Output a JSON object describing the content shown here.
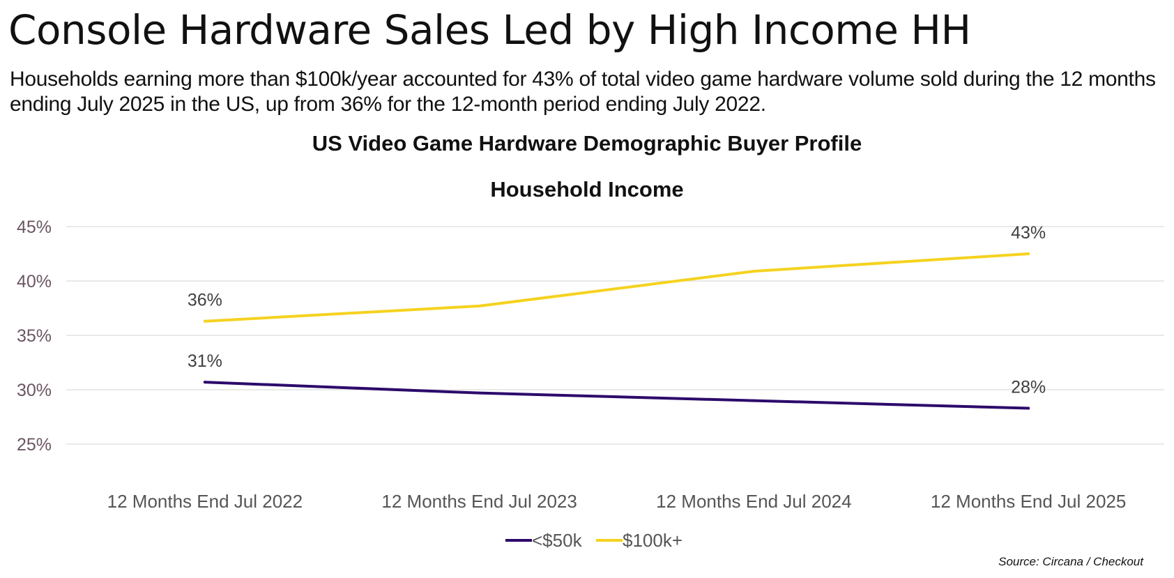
{
  "headline": "Console Hardware Sales Led by High Income HH",
  "subheadline": "Households earning more than $100k/year accounted for 43% of total video game hardware volume sold during the 12 months ending July 2025 in the US, up from 36% for the 12-month period ending July 2022.",
  "source": "Source: Circana / Checkout",
  "chart_data": {
    "type": "line",
    "title": "US Video Game Hardware Demographic Buyer Profile",
    "subtitle": "Household Income",
    "xlabel": "",
    "ylabel": "",
    "categories": [
      "12 Months End Jul 2022",
      "12 Months End Jul 2023",
      "12 Months End Jul 2024",
      "12 Months End Jul 2025"
    ],
    "ylim": [
      25,
      45
    ],
    "yticks": [
      25,
      30,
      35,
      40,
      45
    ],
    "ytick_labels": [
      "25%",
      "30%",
      "35%",
      "40%",
      "45%"
    ],
    "grid": true,
    "legend_position": "bottom-center",
    "series": [
      {
        "name": "<$50k",
        "color": "#2d0a6b",
        "values": [
          30.7,
          29.7,
          29.0,
          28.3
        ],
        "data_labels": [
          "31%",
          "",
          "",
          "28%"
        ]
      },
      {
        "name": "$100k+",
        "color": "#f5d21f",
        "values": [
          36.3,
          37.7,
          40.9,
          42.5
        ],
        "data_labels": [
          "36%",
          "",
          "",
          "43%"
        ]
      }
    ]
  }
}
